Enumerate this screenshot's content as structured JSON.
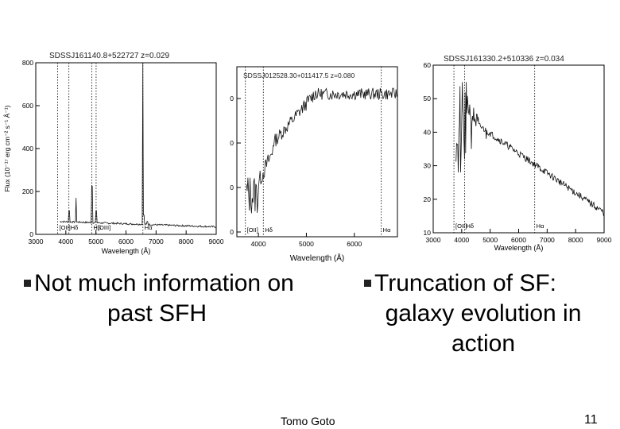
{
  "slide": {
    "bullet_left_line1": "Not much information on",
    "bullet_left_line2": "past SFH",
    "bullet_right_line1": "Truncation of SF:",
    "bullet_right_line2": "galaxy evolution in",
    "bullet_right_line3": "action",
    "footer_author": "Tomo Goto",
    "page_number": "11"
  },
  "chart_data": [
    {
      "type": "line",
      "title": "SDSSJ161140.8+522727  z=0.029",
      "xlabel": "Wavelength (Å)",
      "ylabel": "Flux (10⁻¹⁷ erg cm⁻² s⁻¹ Å⁻¹)",
      "xlim": [
        3000,
        9000
      ],
      "ylim": [
        0,
        800
      ],
      "xticks": [
        "3000",
        "4000",
        "5000",
        "6000",
        "7000",
        "8000",
        "9000"
      ],
      "yticks": [
        "0",
        "200",
        "400",
        "600",
        "800"
      ],
      "line_labels": [
        "[OII]",
        "Hδ",
        "Hβ",
        "[OIII]",
        "Hα"
      ],
      "line_wavelengths": [
        3727,
        4102,
        4861,
        5007,
        6563
      ]
    },
    {
      "type": "line",
      "title": "SDSSJ012528.30+011417.5  z=0.080",
      "xlabel": "Wavelength (Å)",
      "xlim": [
        3550,
        6900
      ],
      "xticks": [
        "4000",
        "5000",
        "6000"
      ],
      "yticks": [
        "0",
        "0",
        "0",
        "0"
      ],
      "line_labels": [
        "[OII]",
        "Hδ",
        "Hα"
      ],
      "line_wavelengths": [
        3727,
        4102,
        6563
      ]
    },
    {
      "type": "line",
      "title": "SDSSJ161330.2+510336  z=0.034",
      "xlabel": "Wavelength (Å)",
      "xlim": [
        3000,
        9000
      ],
      "ylim": [
        10,
        60
      ],
      "xticks": [
        "3000",
        "4000",
        "5000",
        "6000",
        "7000",
        "8000",
        "9000"
      ],
      "yticks": [
        "10",
        "20",
        "30",
        "40",
        "50",
        "60"
      ],
      "line_labels": [
        "[OII]",
        "Hδ",
        "Hα"
      ],
      "line_wavelengths": [
        3727,
        4102,
        6563
      ]
    }
  ]
}
